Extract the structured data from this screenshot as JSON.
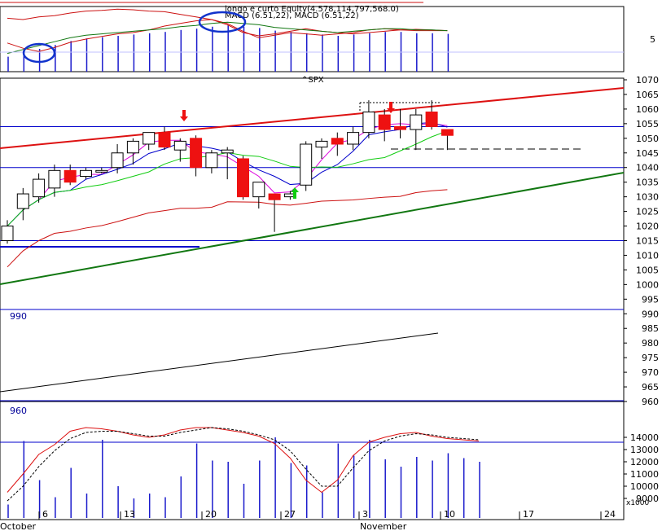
{
  "chart_data": [
    {
      "type": "bar",
      "panel": "indicator",
      "title": "longo e curto Equity(4.578,114,797,568.0)",
      "subtitle": "MACD (6.51,22), MACD (6.51,22)",
      "y_ticks": [
        5
      ],
      "grid": true,
      "annotations": [
        "blue ellipse near early October",
        "blue ellipse near mid October"
      ]
    },
    {
      "type": "candlestick",
      "panel": "price",
      "symbol": "^SPX",
      "y_ticks": [
        1070,
        1065,
        1060,
        1055,
        1050,
        1045,
        1040,
        1035,
        1030,
        1025,
        1020,
        1015,
        1010,
        1005,
        1000,
        995,
        990,
        985,
        980,
        975,
        970,
        965,
        960
      ],
      "ylim": [
        958,
        1072
      ],
      "overlay_label_left_1": "990",
      "overlay_label_left_2": "960",
      "x_ticks": [
        "6",
        "13",
        "20",
        "27",
        "3",
        "10",
        "17",
        "24"
      ],
      "x_months": [
        "October",
        "November"
      ],
      "candles": [
        {
          "o": 1015,
          "h": 1022,
          "l": 1014,
          "c": 1020
        },
        {
          "o": 1026,
          "h": 1033,
          "l": 1022,
          "c": 1031
        },
        {
          "o": 1030,
          "h": 1038,
          "l": 1028,
          "c": 1036
        },
        {
          "o": 1033,
          "h": 1041,
          "l": 1030,
          "c": 1039
        },
        {
          "o": 1039,
          "h": 1041,
          "l": 1034,
          "c": 1035
        },
        {
          "o": 1037,
          "h": 1040,
          "l": 1036,
          "c": 1039
        },
        {
          "o": 1039,
          "h": 1040,
          "l": 1038,
          "c": 1039
        },
        {
          "o": 1040,
          "h": 1048,
          "l": 1038,
          "c": 1045
        },
        {
          "o": 1045,
          "h": 1050,
          "l": 1041,
          "c": 1049
        },
        {
          "o": 1048,
          "h": 1052,
          "l": 1046,
          "c": 1052
        },
        {
          "o": 1052,
          "h": 1054,
          "l": 1046,
          "c": 1047
        },
        {
          "o": 1046,
          "h": 1050,
          "l": 1042,
          "c": 1049
        },
        {
          "o": 1050,
          "h": 1051,
          "l": 1037,
          "c": 1040
        },
        {
          "o": 1040,
          "h": 1046,
          "l": 1038,
          "c": 1045
        },
        {
          "o": 1045,
          "h": 1047,
          "l": 1036,
          "c": 1046
        },
        {
          "o": 1043,
          "h": 1044,
          "l": 1029,
          "c": 1030
        },
        {
          "o": 1030,
          "h": 1035,
          "l": 1026,
          "c": 1035
        },
        {
          "o": 1031,
          "h": 1031,
          "l": 1018,
          "c": 1029
        },
        {
          "o": 1030,
          "h": 1032,
          "l": 1029,
          "c": 1031
        },
        {
          "o": 1034,
          "h": 1049,
          "l": 1032,
          "c": 1048
        },
        {
          "o": 1047,
          "h": 1050,
          "l": 1043,
          "c": 1049
        },
        {
          "o": 1050,
          "h": 1052,
          "l": 1044,
          "c": 1048
        },
        {
          "o": 1048,
          "h": 1054,
          "l": 1046,
          "c": 1052
        },
        {
          "o": 1052,
          "h": 1063,
          "l": 1050,
          "c": 1059
        },
        {
          "o": 1058,
          "h": 1060,
          "l": 1049,
          "c": 1053
        },
        {
          "o": 1054,
          "h": 1060,
          "l": 1050,
          "c": 1053
        },
        {
          "o": 1053,
          "h": 1060,
          "l": 1046,
          "c": 1058
        },
        {
          "o": 1059,
          "h": 1063,
          "l": 1053,
          "c": 1054
        },
        {
          "o": 1053,
          "h": 1053,
          "l": 1046,
          "c": 1051
        }
      ]
    },
    {
      "type": "line",
      "panel": "oscillator",
      "y_ticks": [
        14000,
        13000,
        12000,
        11000,
        10000,
        9000
      ],
      "unit_label": "x1000",
      "bars": [
        8.5,
        13.7,
        10.5,
        9.1,
        11.5,
        9.4,
        13.8,
        10.0,
        9.0,
        9.4,
        9.1,
        10.8,
        13.5,
        12.1,
        12.0,
        10.2,
        12.1,
        14.0,
        11.9,
        11.7,
        9.5,
        13.5,
        12.5,
        13.8,
        12.2,
        11.6,
        12.4,
        12.1,
        12.7,
        12.3,
        12.0
      ],
      "stoch_k": [
        9.5,
        11.0,
        12.6,
        13.4,
        14.5,
        14.8,
        14.7,
        14.5,
        14.2,
        14.0,
        14.2,
        14.6,
        14.8,
        14.8,
        14.6,
        14.4,
        14.1,
        13.5,
        12.3,
        10.5,
        9.5,
        10.5,
        12.5,
        13.6,
        14.0,
        14.3,
        14.4,
        14.1,
        13.9,
        13.8,
        13.7
      ],
      "stoch_d": [
        8.8,
        10.0,
        11.6,
        12.9,
        13.9,
        14.4,
        14.5,
        14.5,
        14.3,
        14.1,
        14.1,
        14.4,
        14.6,
        14.8,
        14.7,
        14.5,
        14.2,
        13.8,
        12.9,
        11.4,
        10.0,
        10.0,
        11.5,
        12.9,
        13.7,
        14.1,
        14.3,
        14.2,
        14.0,
        13.9,
        13.8
      ]
    }
  ],
  "colors": {
    "up_candle": "#ffffff",
    "down_candle": "#ee1111",
    "trend_upper": "#dd1111",
    "trend_lower": "#117711",
    "blue_line": "#0000cc",
    "magenta_line": "#dd00dd",
    "green_line": "#11cc11",
    "red_band": "#cc1111",
    "volume_bar": "#1a1acc"
  }
}
